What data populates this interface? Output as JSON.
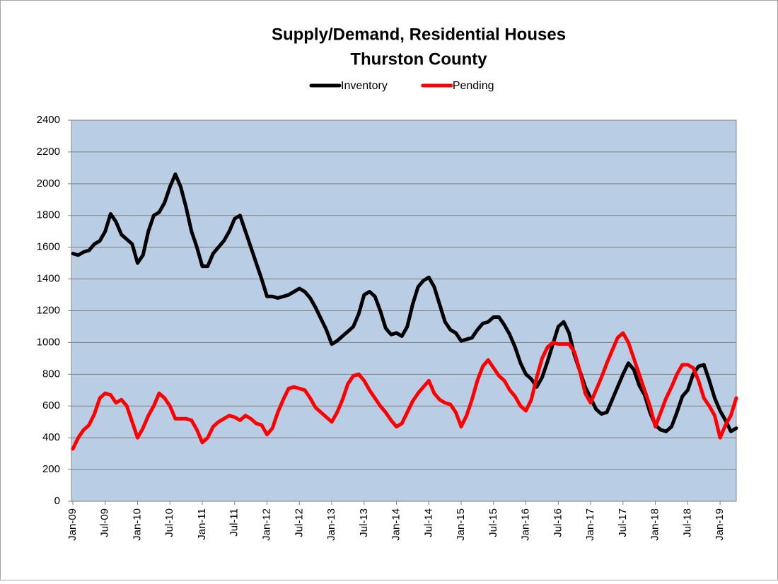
{
  "chart_data": {
    "type": "line",
    "title": [
      "Supply/Demand, Residential Houses",
      "Thurston County"
    ],
    "categories": [
      "Jan-09",
      null,
      null,
      null,
      null,
      null,
      "Jul-09",
      null,
      null,
      null,
      null,
      null,
      "Jan-10",
      null,
      null,
      null,
      null,
      null,
      "Jul-10",
      null,
      null,
      null,
      null,
      null,
      "Jan-11",
      null,
      null,
      null,
      null,
      null,
      "Jul-11",
      null,
      null,
      null,
      null,
      null,
      "Jan-12",
      null,
      null,
      null,
      null,
      null,
      "Jul-12",
      null,
      null,
      null,
      null,
      null,
      "Jan-13",
      null,
      null,
      null,
      null,
      null,
      "Jul-13",
      null,
      null,
      null,
      null,
      null,
      "Jan-14",
      null,
      null,
      null,
      null,
      null,
      "Jul-14",
      null,
      null,
      null,
      null,
      null,
      "Jan-15",
      null,
      null,
      null,
      null,
      null,
      "Jul-15",
      null,
      null,
      null,
      null,
      null,
      "Jan-16",
      null,
      null,
      null,
      null,
      null,
      "Jul-16",
      null,
      null,
      null,
      null,
      null,
      "Jan-17",
      null,
      null,
      null,
      null,
      null,
      "Jul-17",
      null,
      null,
      null,
      null,
      null,
      "Jan-18",
      null,
      null,
      null,
      null,
      null,
      "Jul-18",
      null,
      null,
      null,
      null,
      null,
      "Jan-19",
      null,
      null,
      null
    ],
    "series": [
      {
        "name": "Inventory",
        "color": "#000000",
        "values": [
          1560,
          1550,
          1570,
          1580,
          1620,
          1640,
          1700,
          1810,
          1760,
          1680,
          1650,
          1620,
          1500,
          1550,
          1700,
          1800,
          1820,
          1880,
          1980,
          2060,
          1980,
          1850,
          1700,
          1600,
          1480,
          1480,
          1560,
          1600,
          1640,
          1700,
          1780,
          1800,
          1700,
          1600,
          1500,
          1400,
          1290,
          1290,
          1280,
          1290,
          1300,
          1320,
          1340,
          1320,
          1280,
          1220,
          1150,
          1080,
          990,
          1010,
          1040,
          1070,
          1100,
          1180,
          1300,
          1320,
          1290,
          1200,
          1090,
          1050,
          1060,
          1040,
          1100,
          1240,
          1350,
          1390,
          1410,
          1350,
          1240,
          1130,
          1080,
          1060,
          1010,
          1020,
          1030,
          1080,
          1120,
          1130,
          1160,
          1160,
          1110,
          1050,
          970,
          870,
          800,
          770,
          720,
          780,
          880,
          990,
          1100,
          1130,
          1060,
          920,
          820,
          720,
          650,
          580,
          550,
          560,
          640,
          720,
          800,
          870,
          830,
          730,
          670,
          560,
          480,
          450,
          440,
          470,
          560,
          660,
          700,
          800,
          850,
          860,
          760,
          650,
          570,
          510,
          440,
          460
        ]
      },
      {
        "name": "Pending",
        "color": "#ff0000",
        "values": [
          330,
          400,
          450,
          480,
          550,
          650,
          680,
          670,
          620,
          640,
          600,
          500,
          400,
          460,
          540,
          600,
          680,
          650,
          600,
          520,
          520,
          520,
          510,
          450,
          370,
          400,
          470,
          500,
          520,
          540,
          530,
          510,
          540,
          520,
          490,
          480,
          420,
          460,
          560,
          640,
          710,
          720,
          710,
          700,
          650,
          590,
          560,
          530,
          500,
          560,
          640,
          740,
          790,
          800,
          760,
          700,
          650,
          600,
          560,
          510,
          470,
          490,
          560,
          630,
          680,
          720,
          760,
          680,
          640,
          620,
          610,
          560,
          470,
          540,
          640,
          760,
          850,
          890,
          840,
          790,
          760,
          700,
          660,
          600,
          570,
          640,
          780,
          900,
          970,
          1000,
          990,
          990,
          990,
          940,
          820,
          680,
          620,
          700,
          780,
          870,
          950,
          1030,
          1060,
          1000,
          900,
          800,
          700,
          600,
          470,
          560,
          650,
          720,
          800,
          860,
          860,
          840,
          760,
          650,
          600,
          540,
          400,
          480,
          540,
          650
        ]
      }
    ],
    "ylim": [
      0,
      2400
    ],
    "yticks": [
      0,
      200,
      400,
      600,
      800,
      1000,
      1200,
      1400,
      1600,
      1800,
      2000,
      2200,
      2400
    ],
    "grid": true,
    "legend": "top",
    "plot_background": "#b9cde5"
  }
}
